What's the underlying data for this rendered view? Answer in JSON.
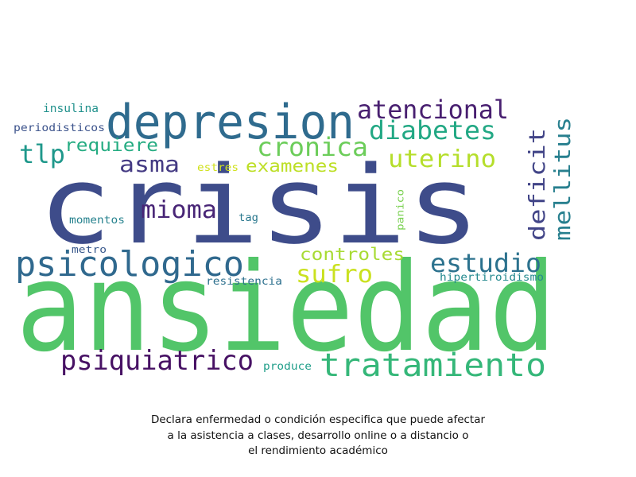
{
  "words": [
    {
      "text": "ansiedad",
      "color": "#52c569"
    },
    {
      "text": "crisis",
      "color": "#3e4c8a"
    },
    {
      "text": "depresion",
      "color": "#2f6b8e"
    },
    {
      "text": "tratamiento",
      "color": "#35b779"
    },
    {
      "text": "psicologico",
      "color": "#30698e"
    },
    {
      "text": "psiquiatrico",
      "color": "#471164"
    },
    {
      "text": "atencional",
      "color": "#481f70"
    },
    {
      "text": "diabetes",
      "color": "#22a884"
    },
    {
      "text": "cronica",
      "color": "#6ccd5a"
    },
    {
      "text": "uterino",
      "color": "#b5de2b"
    },
    {
      "text": "estudio",
      "color": "#2c728e"
    },
    {
      "text": "mioma",
      "color": "#482576"
    },
    {
      "text": "asma",
      "color": "#443a83"
    },
    {
      "text": "tlp",
      "color": "#1f988b"
    },
    {
      "text": "requiere",
      "color": "#25ac82"
    },
    {
      "text": "examenes",
      "color": "#bddf26"
    },
    {
      "text": "deficit",
      "color": "#414487"
    },
    {
      "text": "mellitus",
      "color": "#277f8e"
    },
    {
      "text": "sufro",
      "color": "#cae11f"
    },
    {
      "text": "controles",
      "color": "#a8db34"
    },
    {
      "text": "insulina",
      "color": "#21918c"
    },
    {
      "text": "periodisticos",
      "color": "#3b528b"
    },
    {
      "text": "estres",
      "color": "#d0e11c"
    },
    {
      "text": "momentos",
      "color": "#26828e"
    },
    {
      "text": "tag",
      "color": "#2a788e"
    },
    {
      "text": "panico",
      "color": "#7ad151"
    },
    {
      "text": "metro",
      "color": "#38588c"
    },
    {
      "text": "resistencia",
      "color": "#2d708e"
    },
    {
      "text": "hipertiroidismo",
      "color": "#23898e"
    },
    {
      "text": "produce",
      "color": "#1f9e89"
    }
  ],
  "caption": {
    "line1": "Declara enfermedad o condición especifica que puede afectar",
    "line2": "a la asistencia a clases, desarrollo online o a distancio o",
    "line3": "el rendimiento académico"
  }
}
